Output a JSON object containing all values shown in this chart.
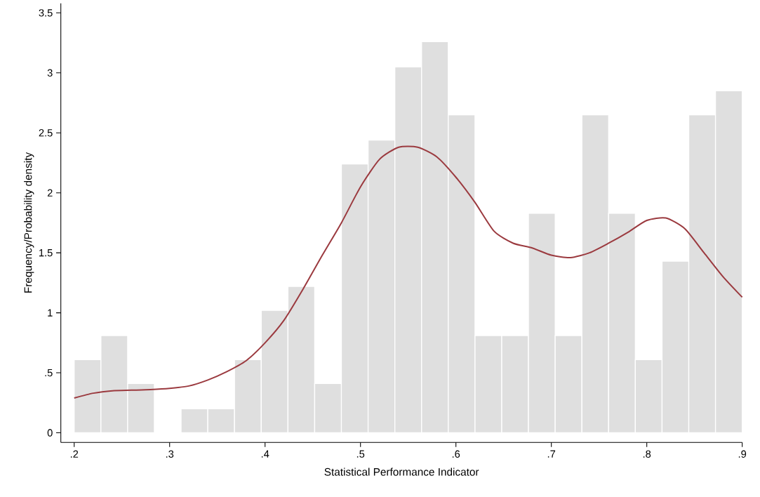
{
  "chart_data": {
    "type": "histogram",
    "xlabel": "Statistical Performance Indicator",
    "ylabel": "Frequency/Probability density",
    "xlim": [
      0.186,
      0.9
    ],
    "ylim": [
      -0.08,
      3.58
    ],
    "xticks": [
      {
        "value": 0.2,
        "label": ".2"
      },
      {
        "value": 0.3,
        "label": ".3"
      },
      {
        "value": 0.4,
        "label": ".4"
      },
      {
        "value": 0.5,
        "label": ".5"
      },
      {
        "value": 0.6,
        "label": ".6"
      },
      {
        "value": 0.7,
        "label": ".7"
      },
      {
        "value": 0.8,
        "label": ".8"
      },
      {
        "value": 0.9,
        "label": ".9"
      }
    ],
    "yticks": [
      0,
      {
        "value": 0.5,
        "label": ".5"
      },
      1,
      {
        "value": 1.5,
        "label": "1.5"
      },
      2,
      {
        "value": 2.5,
        "label": "2.5"
      },
      3,
      {
        "value": 3.5,
        "label": "3.5"
      }
    ],
    "grid": false,
    "series": [
      {
        "type": "histogram",
        "color": "#dfdfdf",
        "bins": [
          0.2,
          0.228,
          0.256,
          0.284,
          0.312,
          0.34,
          0.368,
          0.396,
          0.424,
          0.452,
          0.48,
          0.508,
          0.536,
          0.564,
          0.592,
          0.62,
          0.648,
          0.676,
          0.704,
          0.732,
          0.76,
          0.788,
          0.816,
          0.844,
          0.872,
          0.9
        ],
        "values": [
          0.61,
          0.81,
          0.41,
          0,
          0.2,
          0.2,
          0.61,
          1.02,
          1.22,
          0.41,
          2.24,
          2.44,
          3.05,
          3.26,
          2.65,
          0.81,
          0.81,
          1.83,
          0.81,
          2.65,
          1.83,
          0.61,
          1.43,
          2.65,
          2.85
        ]
      },
      {
        "type": "line",
        "color": "#9b3a3f",
        "line_style": "solid",
        "marker": "none",
        "x": [
          0.2,
          0.22,
          0.24,
          0.26,
          0.28,
          0.3,
          0.32,
          0.34,
          0.36,
          0.38,
          0.4,
          0.42,
          0.44,
          0.46,
          0.48,
          0.5,
          0.52,
          0.54,
          0.56,
          0.58,
          0.6,
          0.62,
          0.64,
          0.66,
          0.68,
          0.7,
          0.72,
          0.74,
          0.76,
          0.78,
          0.8,
          0.82,
          0.84,
          0.86,
          0.88,
          0.9
        ],
        "values": [
          0.29,
          0.33,
          0.35,
          0.355,
          0.36,
          0.37,
          0.39,
          0.44,
          0.51,
          0.6,
          0.75,
          0.94,
          1.2,
          1.48,
          1.75,
          2.05,
          2.28,
          2.38,
          2.38,
          2.3,
          2.13,
          1.92,
          1.68,
          1.58,
          1.54,
          1.48,
          1.46,
          1.5,
          1.58,
          1.67,
          1.77,
          1.79,
          1.7,
          1.5,
          1.3,
          1.13
        ]
      }
    ]
  }
}
